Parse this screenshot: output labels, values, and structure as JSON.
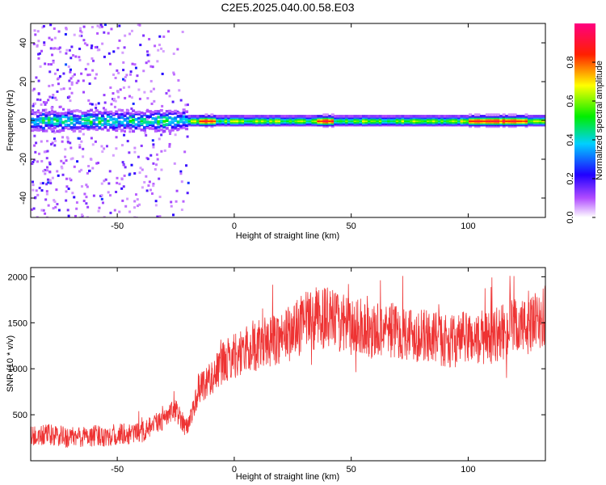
{
  "title": "C2E5.2025.040.00.58.E03",
  "colors": {
    "snr_line": "#ee3333",
    "background": "#ffffff",
    "axis": "#000000"
  },
  "chart_data": [
    {
      "type": "heatmap",
      "xlabel": "Height of straight line (km)",
      "ylabel": "Frequency (Hz)",
      "xlim": [
        -87,
        133
      ],
      "ylim": [
        -50,
        50
      ],
      "xticks": [
        "-50",
        "0",
        "50",
        "100"
      ],
      "yticks": [
        "-40",
        "-20",
        "0",
        "20",
        "40"
      ],
      "colorbar": {
        "label": "Normalized spectral amplitude",
        "range": [
          0.0,
          1.0
        ],
        "ticks": [
          "0.0",
          "0.2",
          "0.4",
          "0.6",
          "0.8"
        ],
        "colormap": "rainbow (white-violet-blue-cyan-green-yellow-red-magenta)"
      },
      "features": {
        "main_band_frequency_hz": 0,
        "main_band_half_width_hz": 3,
        "noisy_scatter_x_range": [
          -87,
          -20
        ],
        "high_amplitude_x_segments": [
          [
            -15,
            -8
          ],
          [
            35,
            42
          ],
          [
            100,
            125
          ]
        ]
      }
    },
    {
      "type": "line",
      "xlabel": "Height of straight line (km)",
      "ylabel": "SNR (10 * v/v)",
      "xlim": [
        -87,
        133
      ],
      "ylim": [
        0,
        2100
      ],
      "xticks": [
        "-50",
        "0",
        "50",
        "100"
      ],
      "yticks": [
        "500",
        "1000",
        "1500",
        "2000"
      ],
      "series": [
        {
          "x": [
            -87,
            -80,
            -70,
            -60,
            -50,
            -40,
            -30,
            -25,
            -20,
            -15,
            -10,
            -5,
            0,
            5,
            10,
            15,
            20,
            25,
            30,
            35,
            40,
            45,
            50,
            55,
            60,
            65,
            70,
            75,
            80,
            85,
            90,
            95,
            100,
            105,
            110,
            115,
            120,
            125,
            133
          ],
          "y": [
            250,
            280,
            250,
            270,
            280,
            300,
            450,
            550,
            350,
            800,
            900,
            1050,
            1150,
            1200,
            1250,
            1300,
            1350,
            1400,
            1500,
            1550,
            1550,
            1500,
            1450,
            1450,
            1400,
            1450,
            1400,
            1400,
            1350,
            1350,
            1300,
            1300,
            1350,
            1300,
            1350,
            1400,
            1450,
            1450,
            1550
          ]
        }
      ]
    }
  ]
}
